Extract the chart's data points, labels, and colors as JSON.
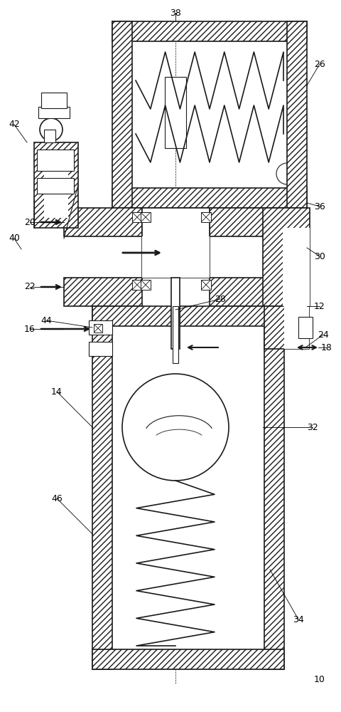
{
  "bg_color": "#ffffff",
  "line_color": "#1a1a1a",
  "fig_width": 4.8,
  "fig_height": 10.0,
  "dpi": 100
}
